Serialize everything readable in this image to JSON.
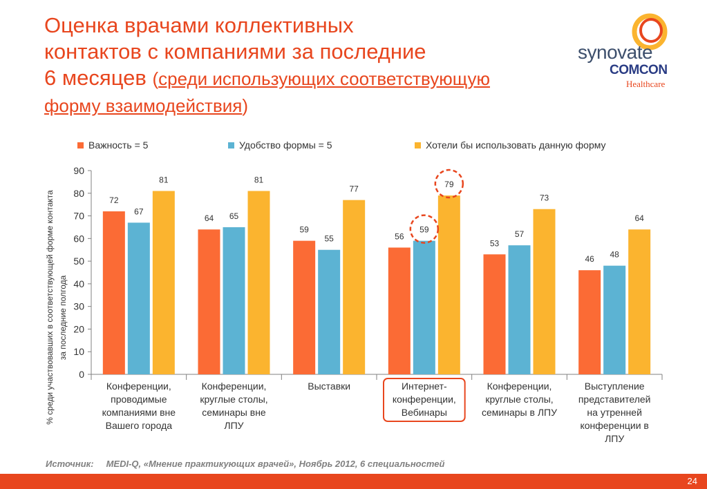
{
  "title": {
    "line1": "Оценка врачами коллективных",
    "line2": "контактов с компаниями за последние",
    "line3": "6 месяцев",
    "paren_open": "(",
    "sub_line1": "среди использующих соответствующую",
    "sub_line2": "форму взаимодействия",
    "paren_close": ")"
  },
  "logo": {
    "brand": "synovate",
    "sub": "COMCON",
    "tagline": "Healthcare"
  },
  "source": {
    "label": "Источник:",
    "text": "MEDI-Q, «Мнение практикующих врачей», Ноябрь 2012, 6 специальностей"
  },
  "page_number": "24",
  "colors": {
    "importance": "#fb6b35",
    "convenience": "#5cb3d3",
    "desire": "#fbb42f",
    "accent": "#e8461e"
  },
  "chart_data": {
    "type": "bar",
    "ylabel_line1": "% среди участвовавших в соответствующей форме контакта",
    "ylabel_line2": "за последние полгода",
    "ylim": [
      0,
      90
    ],
    "yticks": [
      0,
      10,
      20,
      30,
      40,
      50,
      60,
      70,
      80,
      90
    ],
    "legend_position": "top",
    "categories": [
      [
        "Конференции,",
        "проводимые",
        "компаниями вне",
        "Вашего города"
      ],
      [
        "Конференции,",
        "круглые столы,",
        "семинары вне",
        "ЛПУ"
      ],
      [
        "Выставки"
      ],
      [
        "Интернет-",
        "конференции,",
        "Вебинары"
      ],
      [
        "Конференции,",
        "круглые столы,",
        "семинары в ЛПУ"
      ],
      [
        "Выступление",
        "представителей",
        "на утренней",
        "конференции в",
        "ЛПУ"
      ]
    ],
    "series": [
      {
        "name": "Важность = 5",
        "color": "#fb6b35",
        "values": [
          72,
          64,
          59,
          56,
          53,
          46
        ]
      },
      {
        "name": "Удобство формы = 5",
        "color": "#5cb3d3",
        "values": [
          67,
          65,
          55,
          59,
          57,
          48
        ]
      },
      {
        "name": "Хотели бы использовать данную форму",
        "color": "#fbb42f",
        "values": [
          81,
          81,
          77,
          79,
          73,
          64
        ]
      }
    ],
    "highlighted_category": 3,
    "circled_points": [
      {
        "series": 1,
        "category": 3
      },
      {
        "series": 2,
        "category": 3
      }
    ]
  }
}
